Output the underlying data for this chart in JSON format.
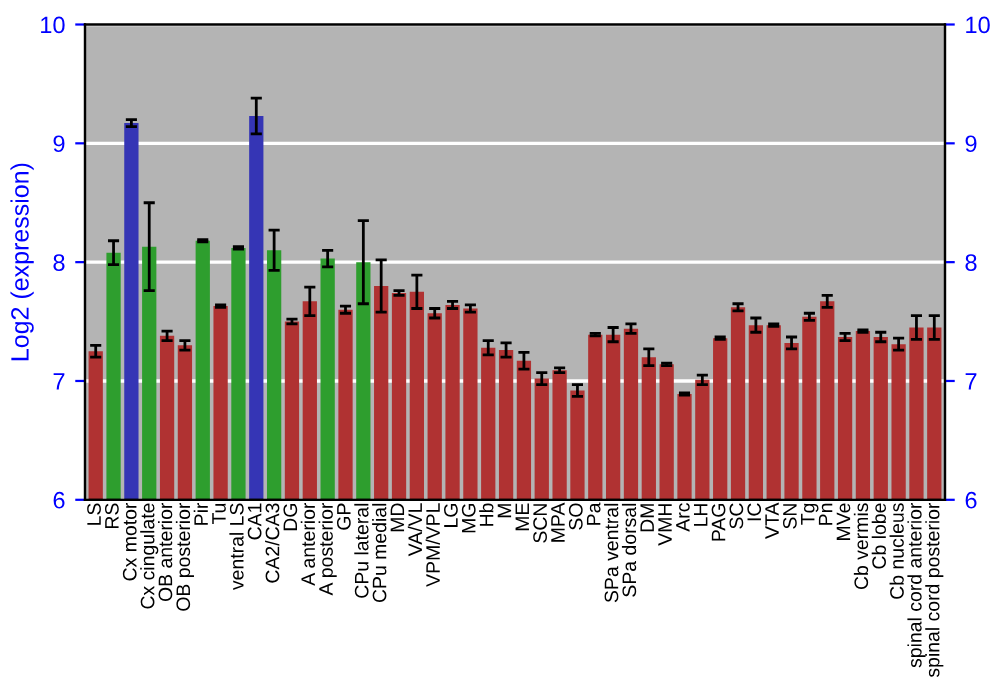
{
  "chart_data": {
    "type": "bar",
    "ylabel": "Log2 (expression)",
    "categories": [
      "LS",
      "RS",
      "Cx motor",
      "Cx cingulate",
      "OB anterior",
      "OB posterior",
      "Pir",
      "Tu",
      "ventral LS",
      "CA1",
      "CA2/CA3",
      "DG",
      "A anterior",
      "A posterior",
      "GP",
      "CPu lateral",
      "CPu medial",
      "MD",
      "VA/VL",
      "VPM/VPL",
      "LG",
      "MG",
      "Hb",
      "M",
      "ME",
      "SCN",
      "MPA",
      "SO",
      "Pa",
      "SPa ventral",
      "SPa dorsal",
      "DM",
      "VMH",
      "Arc",
      "LH",
      "PAG",
      "SC",
      "IC",
      "VTA",
      "SN",
      "Tg",
      "Pn",
      "MVe",
      "Cb vermis",
      "Cb lobe",
      "Cb nucleus",
      "spinal cord anterior",
      "spinal cord posterior"
    ],
    "values": [
      7.25,
      8.08,
      9.17,
      8.13,
      7.38,
      7.3,
      8.18,
      7.63,
      8.12,
      9.23,
      8.1,
      7.5,
      7.67,
      8.03,
      7.6,
      8.0,
      7.8,
      7.74,
      7.75,
      7.57,
      7.64,
      7.61,
      7.28,
      7.26,
      7.17,
      7.02,
      7.09,
      6.92,
      7.39,
      7.39,
      7.44,
      7.2,
      7.14,
      6.89,
      7.01,
      7.36,
      7.62,
      7.47,
      7.47,
      7.32,
      7.54,
      7.67,
      7.37,
      7.42,
      7.37,
      7.31,
      7.45,
      7.45
    ],
    "errors": [
      0.05,
      0.1,
      0.03,
      0.37,
      0.04,
      0.04,
      0.01,
      0.01,
      0.01,
      0.15,
      0.17,
      0.02,
      0.12,
      0.07,
      0.03,
      0.35,
      0.22,
      0.02,
      0.14,
      0.04,
      0.03,
      0.03,
      0.06,
      0.06,
      0.07,
      0.05,
      0.02,
      0.05,
      0.01,
      0.06,
      0.04,
      0.07,
      0.01,
      0.01,
      0.04,
      0.01,
      0.03,
      0.06,
      0.01,
      0.05,
      0.03,
      0.05,
      0.03,
      0.01,
      0.04,
      0.05,
      0.1,
      0.1
    ],
    "colors": [
      "#b03232",
      "#2e9e2e",
      "#3535b5",
      "#2e9e2e",
      "#b03232",
      "#b03232",
      "#2e9e2e",
      "#b03232",
      "#2e9e2e",
      "#3535b5",
      "#2e9e2e",
      "#b03232",
      "#b03232",
      "#2e9e2e",
      "#b03232",
      "#2e9e2e",
      "#b03232",
      "#b03232",
      "#b03232",
      "#b03232",
      "#b03232",
      "#b03232",
      "#b03232",
      "#b03232",
      "#b03232",
      "#b03232",
      "#b03232",
      "#b03232",
      "#b03232",
      "#b03232",
      "#b03232",
      "#b03232",
      "#b03232",
      "#b03232",
      "#b03232",
      "#b03232",
      "#b03232",
      "#b03232",
      "#b03232",
      "#b03232",
      "#b03232",
      "#b03232",
      "#b03232",
      "#b03232",
      "#b03232",
      "#b03232",
      "#b03232",
      "#b03232"
    ],
    "ylim": [
      6,
      10
    ],
    "yticks": [
      6,
      7,
      8,
      9,
      10
    ],
    "y2lim": [
      6,
      10
    ],
    "y2ticks": [
      6,
      7,
      8,
      9,
      10
    ],
    "grid": "y"
  }
}
